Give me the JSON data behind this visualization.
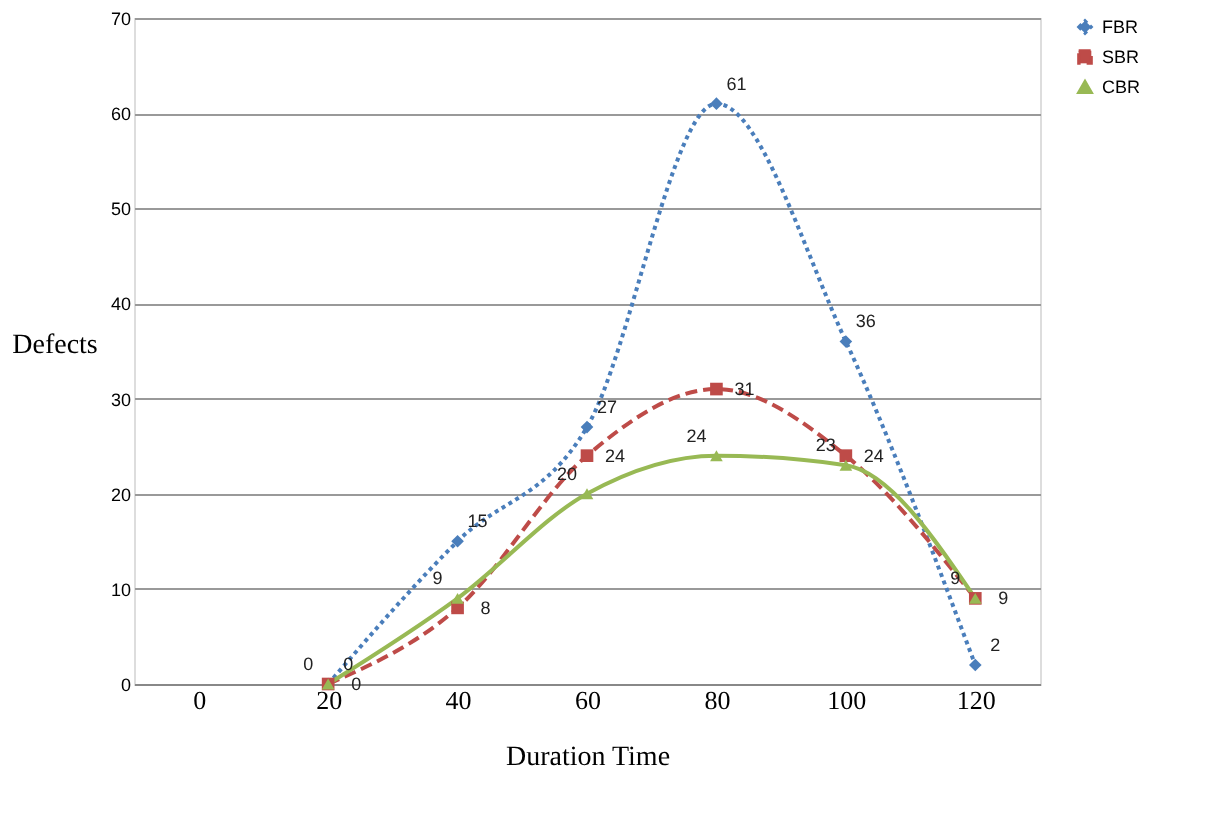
{
  "chart_data": {
    "type": "line",
    "xlabel": "Duration Time",
    "ylabel": "Defects",
    "x": [
      20,
      40,
      60,
      80,
      100,
      120
    ],
    "series": [
      {
        "name": "FBR",
        "color": "#4a7ebb",
        "values": [
          0,
          15,
          27,
          61,
          36,
          2
        ],
        "marker": "diamond",
        "line_style": "dotted"
      },
      {
        "name": "SBR",
        "color": "#be4b48",
        "values": [
          0,
          8,
          24,
          31,
          24,
          9
        ],
        "marker": "square",
        "line_style": "dashed"
      },
      {
        "name": "CBR",
        "color": "#98b954",
        "values": [
          0,
          9,
          20,
          24,
          23,
          9
        ],
        "marker": "triangle",
        "line_style": "solid"
      }
    ],
    "xlim": [
      -10,
      130
    ],
    "xticks": [
      0,
      20,
      40,
      60,
      80,
      100,
      120
    ],
    "ylim": [
      0,
      70
    ],
    "yticks": [
      0,
      10,
      20,
      30,
      40,
      50,
      60,
      70
    ],
    "grid": "y",
    "legend": "right",
    "data_labels": true
  }
}
